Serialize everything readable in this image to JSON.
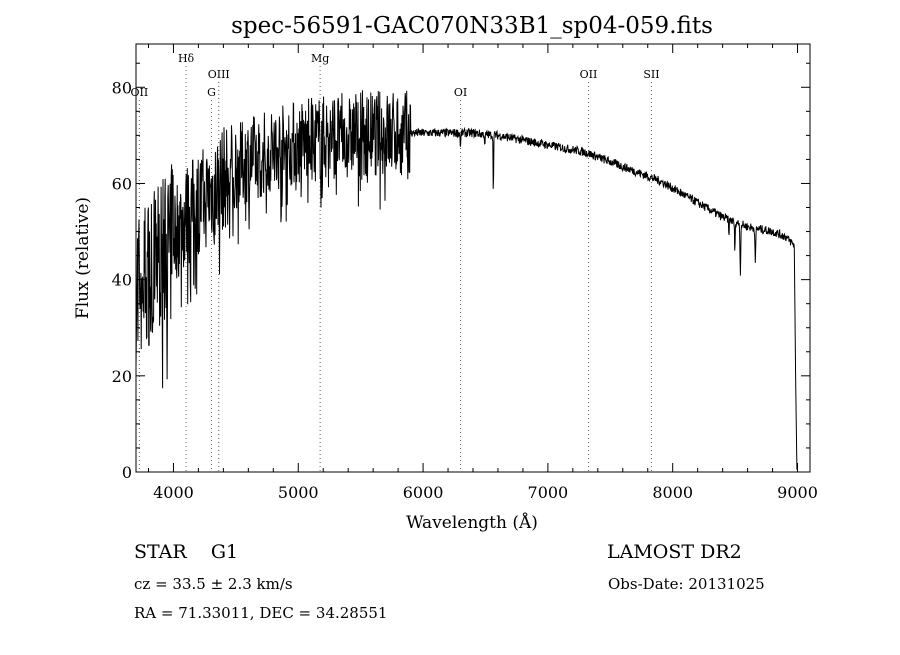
{
  "chart_data": {
    "type": "line",
    "title": "spec-56591-GAC070N33B1_sp04-059.fits",
    "xlabel": "Wavelength (Å)",
    "ylabel": "Flux (relative)",
    "xlim": [
      3700,
      9100
    ],
    "ylim": [
      0,
      89
    ],
    "xticks": [
      4000,
      5000,
      6000,
      7000,
      8000,
      9000
    ],
    "yticks": [
      0,
      20,
      40,
      60,
      80
    ],
    "grid": false,
    "line_color": "#000000",
    "line_lines": [
      {
        "label": "Hδ",
        "x": 4101,
        "row": 0
      },
      {
        "label": "OIII",
        "x": 4363,
        "row": 1
      },
      {
        "label": "G",
        "x": 4305,
        "row": 2
      },
      {
        "label": "Mg",
        "x": 5175,
        "row": 0
      },
      {
        "label": "OII",
        "x": 3727,
        "row": 2
      },
      {
        "label": "OI",
        "x": 6300,
        "row": 2
      },
      {
        "label": "OII",
        "x": 7325,
        "row": 1
      },
      {
        "label": "SII",
        "x": 7830,
        "row": 1
      }
    ],
    "continuum": {
      "x": [
        3700,
        3800,
        3900,
        4000,
        4100,
        4200,
        4300,
        4400,
        4500,
        4600,
        4700,
        4800,
        4900,
        5000,
        5100,
        5200,
        5300,
        5400,
        5500,
        5600,
        5700,
        5800,
        5900,
        6000,
        6100,
        6200,
        6300,
        6400,
        6500,
        6600,
        6700,
        6800,
        6900,
        7000,
        7100,
        7200,
        7300,
        7400,
        7500,
        7600,
        7700,
        7800,
        7900,
        8000,
        8100,
        8200,
        8300,
        8400,
        8500,
        8600,
        8700,
        8800,
        8900,
        8980
      ],
      "y": [
        38,
        42,
        46,
        50,
        53,
        56,
        58,
        61,
        63,
        65,
        66,
        67,
        68,
        68.5,
        69,
        69.5,
        70,
        70,
        70.5,
        70.5,
        70.5,
        70.5,
        70.5,
        70.5,
        70.5,
        70.5,
        70.5,
        70.5,
        70.2,
        70,
        69.5,
        69,
        68.5,
        68,
        67.5,
        67,
        66.5,
        65.5,
        64.5,
        63.5,
        62.5,
        61.5,
        60.5,
        59,
        57.5,
        56,
        54.5,
        53,
        52,
        51,
        50.5,
        50,
        49,
        47
      ]
    },
    "absorption": [
      {
        "x": 6563,
        "depth": 12,
        "width": 3
      },
      {
        "x": 6495,
        "depth": 3,
        "width": 3
      },
      {
        "x": 6300,
        "depth": 3,
        "width": 4
      },
      {
        "x": 8498,
        "depth": 6,
        "width": 4
      },
      {
        "x": 8542,
        "depth": 11,
        "width": 4
      },
      {
        "x": 8662,
        "depth": 8,
        "width": 4
      },
      {
        "x": 8450,
        "depth": 3,
        "width": 4
      }
    ]
  },
  "info": {
    "object_class": "STAR",
    "subclass": "G1",
    "survey": "LAMOST DR2",
    "cz": "cz = 33.5 ± 2.3 km/s",
    "obs_date": "Obs-Date: 20131025",
    "coords": "RA =  71.33011, DEC =  34.28551"
  }
}
